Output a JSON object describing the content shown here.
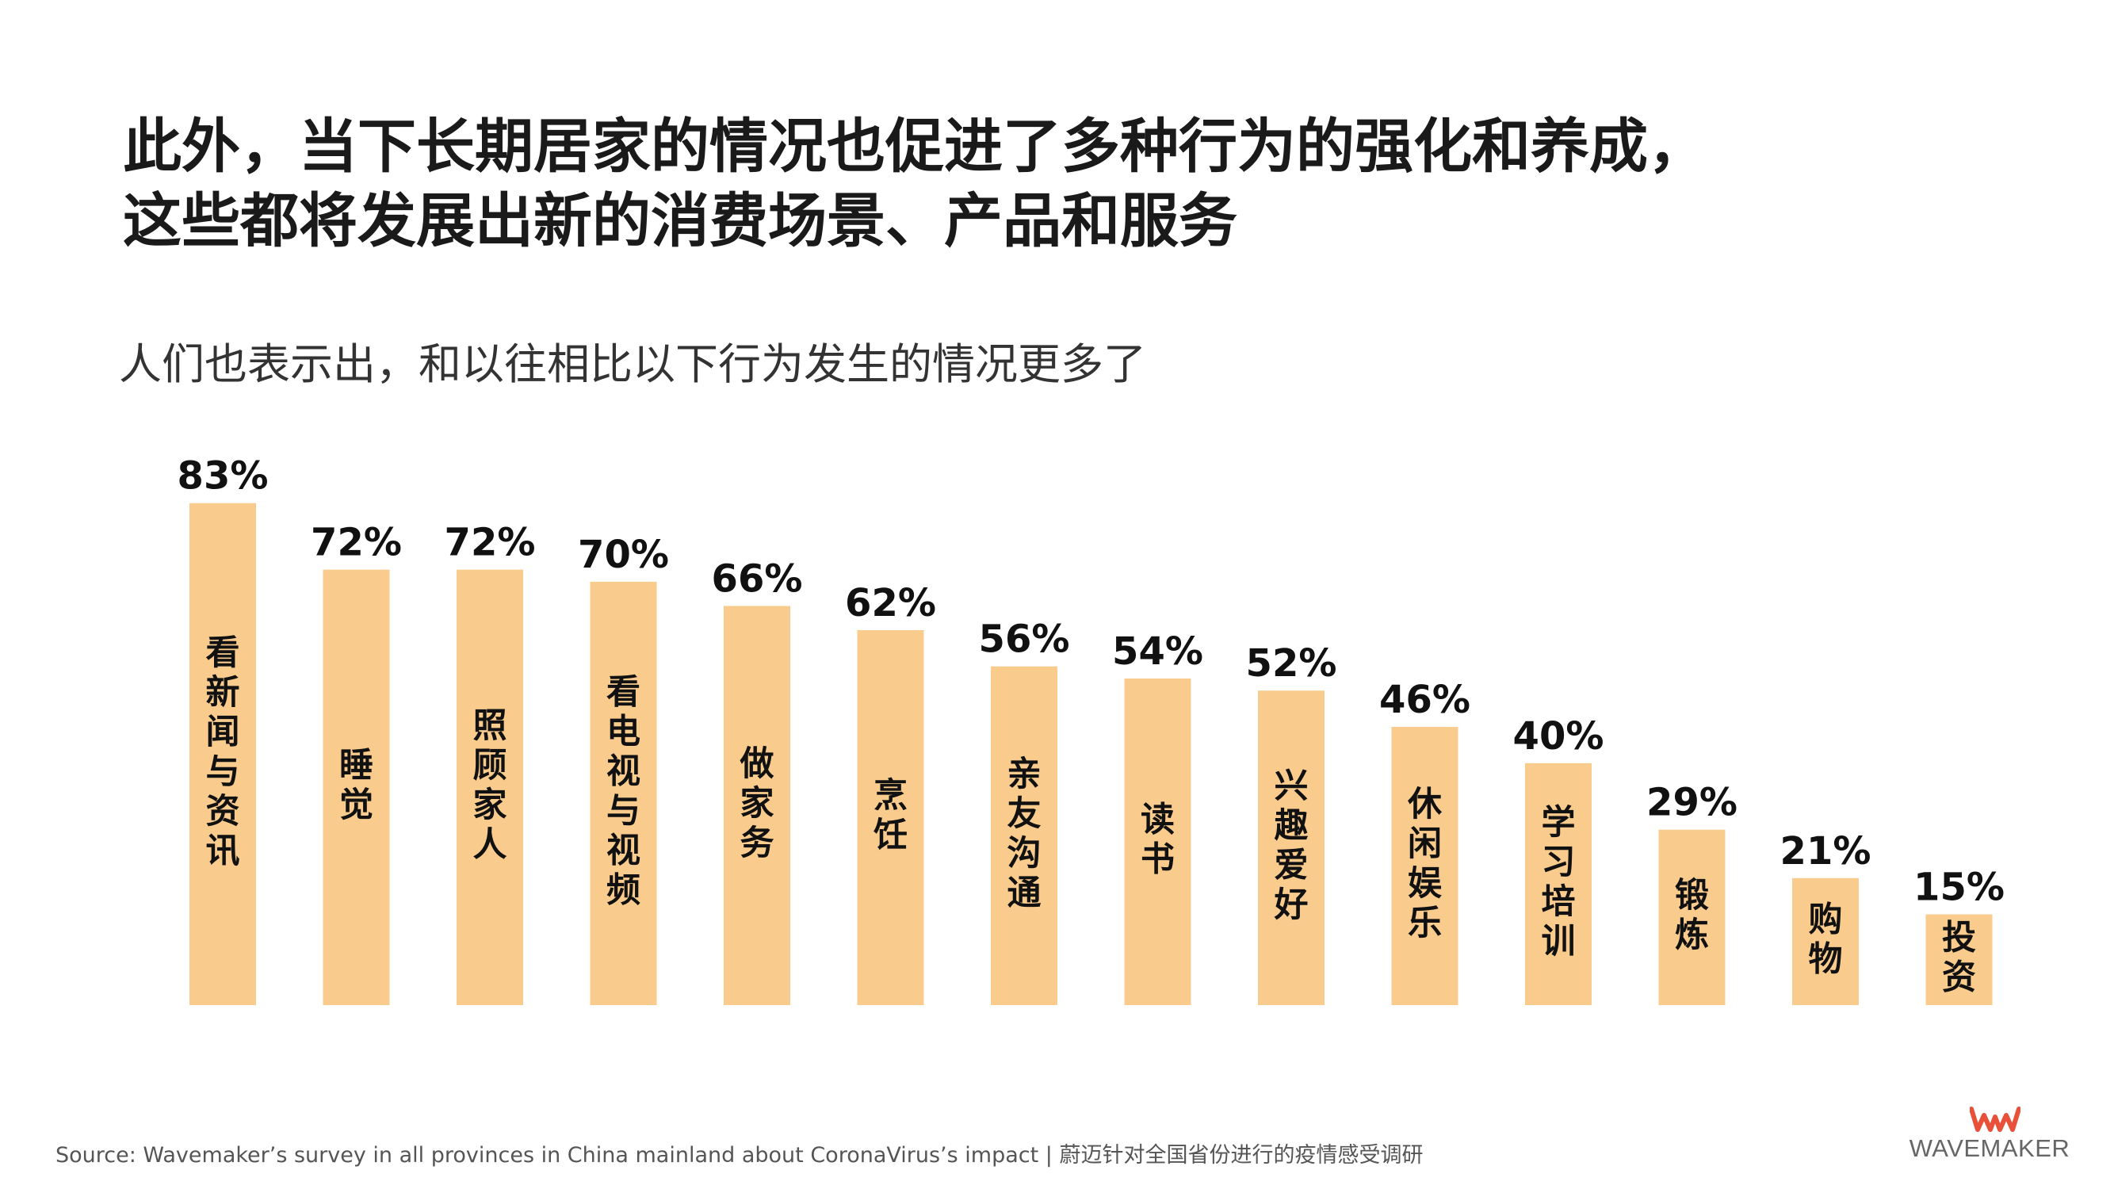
{
  "headline": {
    "line1": "此外，当下长期居家的情况也促进了多种行为的强化和养成，",
    "line2": "这些都将发展出新的消费场景、产品和服务"
  },
  "subtitle": "人们也表示出，和以往相比以下行为发生的情况更多了",
  "chart_data": {
    "type": "bar",
    "title": "",
    "xlabel": "",
    "ylabel": "",
    "ylim": [
      0,
      100
    ],
    "grid": false,
    "legend": "none",
    "bar_color": "#F9CC8E",
    "categories": [
      "看新闻与资讯",
      "睡觉",
      "照顾家人",
      "看电视与视频",
      "做家务",
      "烹饪",
      "亲友沟通",
      "读书",
      "兴趣爱好",
      "休闲娱乐",
      "学习培训",
      "锻炼",
      "购物",
      "投资"
    ],
    "values": [
      83,
      72,
      72,
      70,
      66,
      62,
      56,
      54,
      52,
      46,
      40,
      29,
      21,
      15
    ],
    "value_labels": [
      "83%",
      "72%",
      "72%",
      "70%",
      "66%",
      "62%",
      "56%",
      "54%",
      "52%",
      "46%",
      "40%",
      "29%",
      "21%",
      "15%"
    ]
  },
  "source": "Source: Wavemaker’s survey in all provinces in China mainland about CoronaVirus’s impact | 蔚迈针对全国省份进行的疫情感受调研",
  "logo": {
    "name": "WAVEMAKER",
    "color": "#E8503A",
    "icon": "wm-logo-icon"
  }
}
